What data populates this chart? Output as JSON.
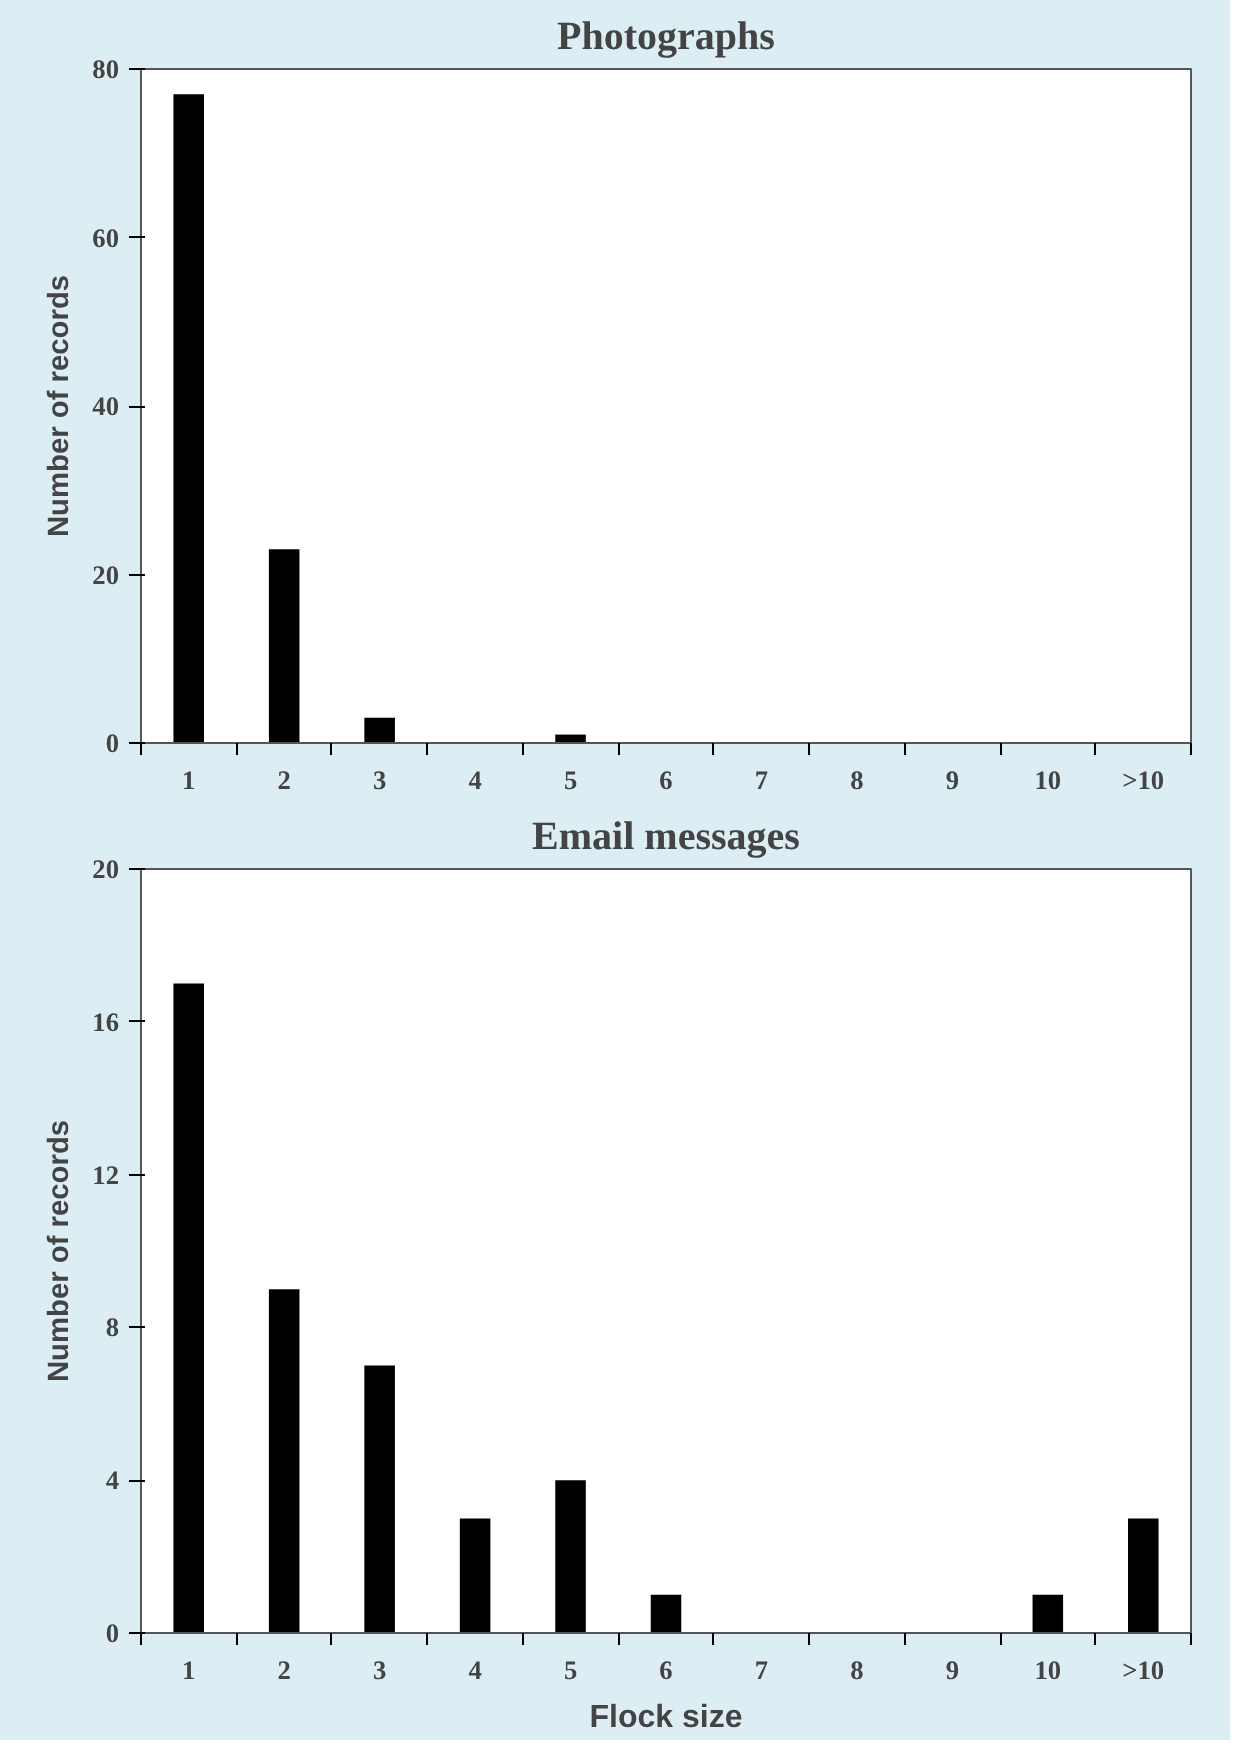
{
  "chart_data": [
    {
      "type": "bar",
      "title": "Photographs",
      "ylabel": "Number of records",
      "categories": [
        "1",
        "2",
        "3",
        "4",
        "5",
        "6",
        "7",
        "8",
        "9",
        "10",
        ">10"
      ],
      "values": [
        77,
        23,
        3,
        0,
        1,
        0,
        0,
        0,
        0,
        0,
        0
      ],
      "color": "#000000",
      "ylim": [
        0,
        80
      ],
      "yticks": [
        0,
        20,
        40,
        60,
        80
      ],
      "grid": false
    },
    {
      "type": "bar",
      "title": "Email messages",
      "xlabel": "Flock size",
      "ylabel": "Number of records",
      "categories": [
        "1",
        "2",
        "3",
        "4",
        "5",
        "6",
        "7",
        "8",
        "9",
        "10",
        ">10"
      ],
      "values": [
        17,
        9,
        7,
        3,
        4,
        1,
        0,
        0,
        0,
        1,
        3
      ],
      "color": "#000000",
      "ylim": [
        0,
        20
      ],
      "yticks": [
        0,
        4,
        8,
        12,
        16,
        20
      ],
      "grid": false
    }
  ]
}
